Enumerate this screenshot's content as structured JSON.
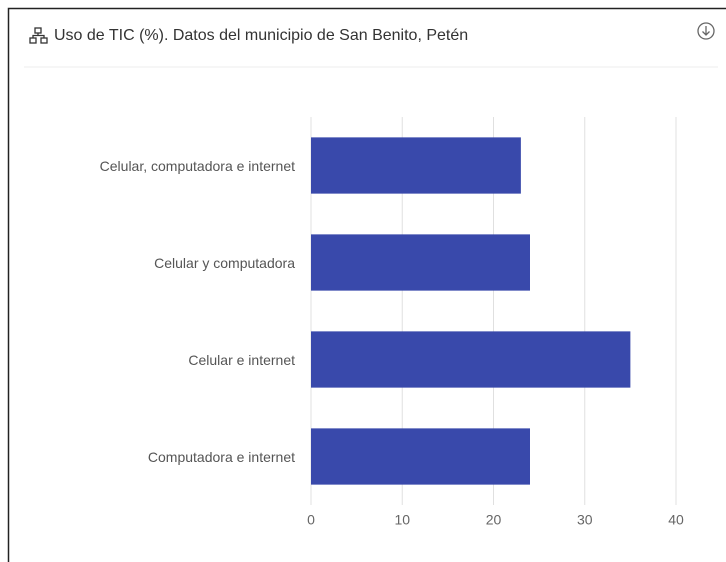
{
  "chart_data": {
    "type": "bar",
    "orientation": "horizontal",
    "title": "Uso de TIC (%). Datos del municipio de San Benito, Petén",
    "categories": [
      "Celular, computadora e internet",
      "Celular y computadora",
      "Celular e internet",
      "Computadora e internet"
    ],
    "values": [
      23,
      24,
      35,
      24
    ],
    "color": "#3949ab",
    "xlim": [
      0,
      40
    ],
    "xticks": [
      0,
      10,
      20,
      30,
      40
    ],
    "grid": true
  }
}
